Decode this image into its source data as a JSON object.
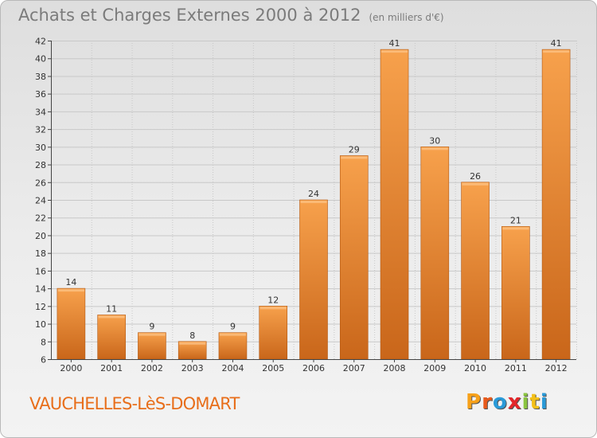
{
  "header": {
    "title": "Achats et Charges Externes 2000 à 2012",
    "unit": "(en milliers d'€)"
  },
  "footer": {
    "commune": "VAUCHELLES-LèS-DOMART",
    "logo_letters": [
      "P",
      "r",
      "o",
      "x",
      "i",
      "t",
      "i"
    ],
    "logo_colors": [
      "#f7a11a",
      "#e85a1c",
      "#2a9ad8",
      "#e3262a",
      "#8bc540",
      "#f3c019",
      "#2a9ad8"
    ]
  },
  "colors": {
    "bar_light": "#f7a14c",
    "bar_dark": "#c9661a",
    "grid": "#c8c8c8",
    "axis": "#444444",
    "title": "#7b7b7b",
    "commune": "#e86e1a"
  },
  "chart_data": {
    "type": "bar",
    "title": "Achats et Charges Externes 2000 à 2012",
    "subtitle": "(en milliers d'€)",
    "xlabel": "",
    "ylabel": "",
    "categories": [
      "2000",
      "2001",
      "2002",
      "2003",
      "2004",
      "2005",
      "2006",
      "2007",
      "2008",
      "2009",
      "2010",
      "2011",
      "2012"
    ],
    "values": [
      14,
      11,
      9,
      8,
      9,
      12,
      24,
      29,
      41,
      30,
      26,
      21,
      41
    ],
    "ylim": [
      6,
      42
    ],
    "yticks": [
      6,
      8,
      10,
      12,
      14,
      16,
      18,
      20,
      22,
      24,
      26,
      28,
      30,
      32,
      34,
      36,
      38,
      40,
      42
    ],
    "grid": true,
    "legend": "none"
  }
}
